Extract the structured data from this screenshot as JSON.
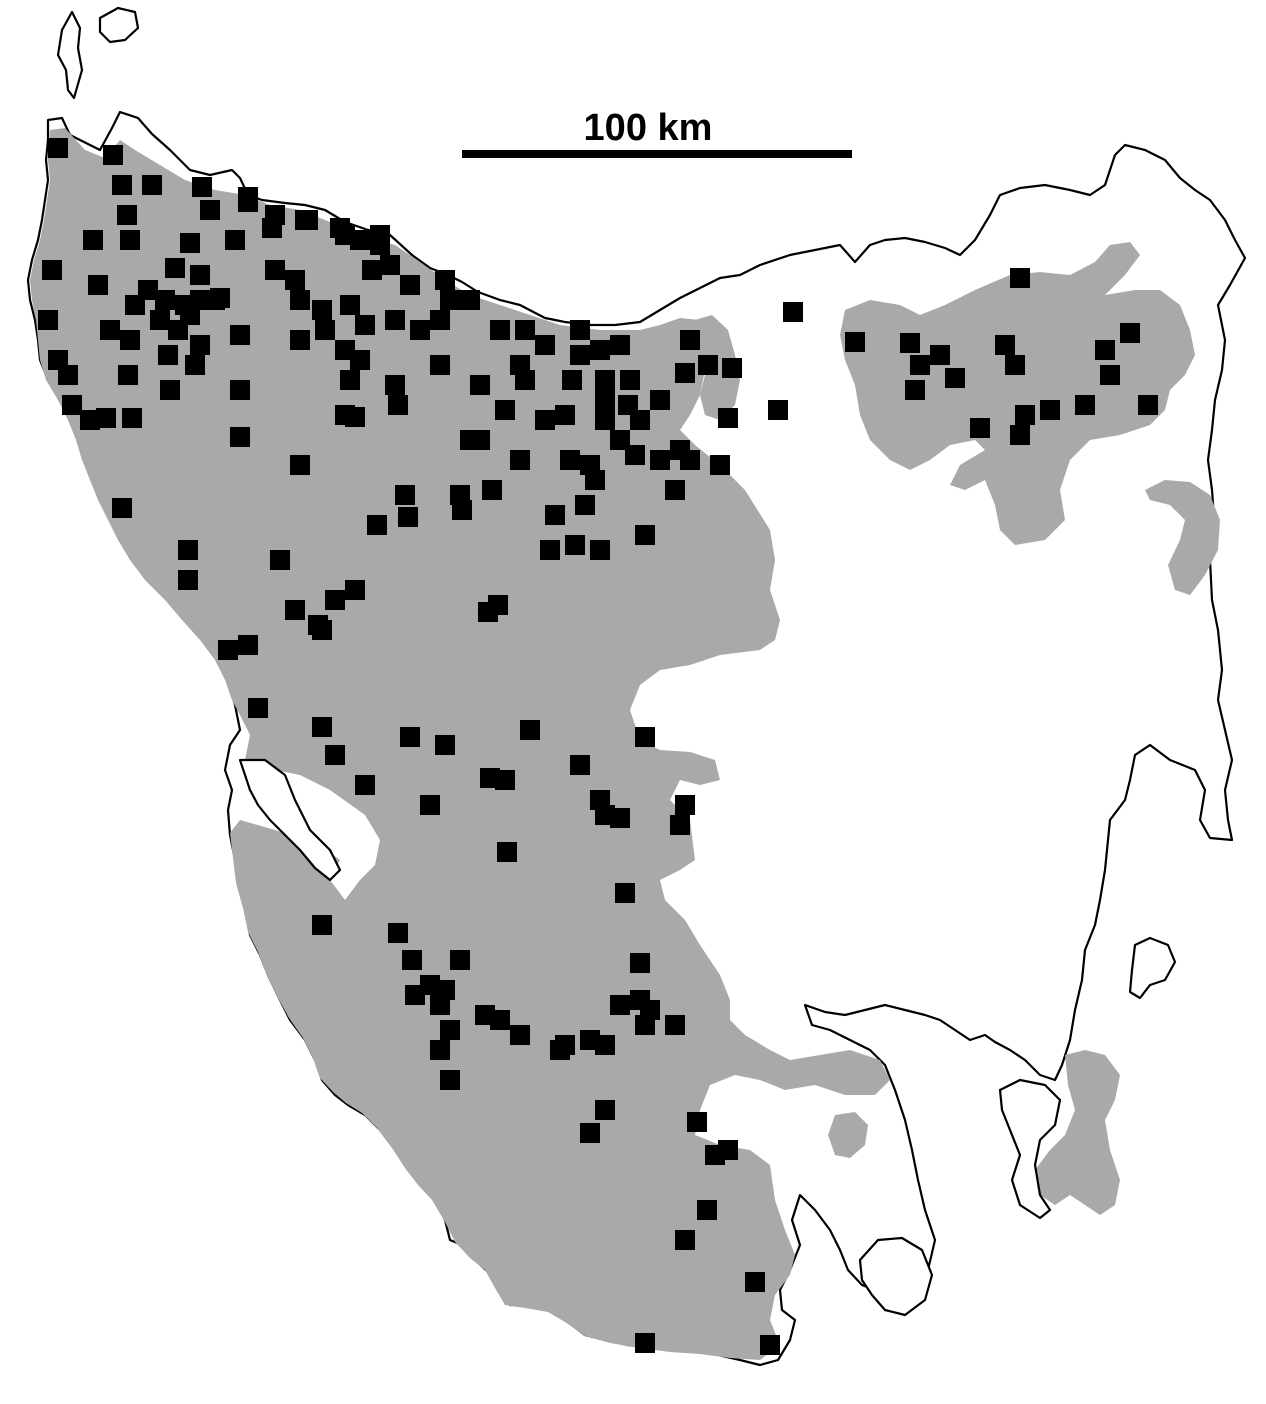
{
  "scale_bar": {
    "label": "100 km"
  },
  "colors": {
    "distribution_fill": "#a9a9a9",
    "record_marker": "#000000",
    "coastline": "#000000",
    "background": "#ffffff"
  },
  "legend": null,
  "records": {
    "marker_shape": "square"
  }
}
